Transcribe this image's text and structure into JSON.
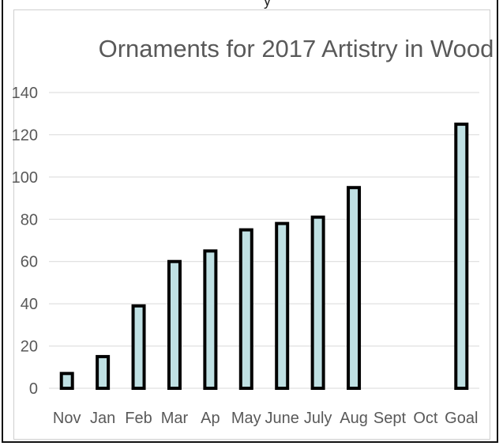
{
  "top_fragment_text": "y",
  "chart_data": {
    "type": "bar",
    "title": "Ornaments for 2017 Artistry in Wood",
    "xlabel": "",
    "ylabel": "",
    "categories": [
      "Nov",
      "Jan",
      "Feb",
      "Mar",
      "Ap",
      "May",
      "June",
      "July",
      "Aug",
      "Sept",
      "Oct",
      "Goal"
    ],
    "values": [
      7,
      15,
      39,
      60,
      65,
      75,
      78,
      81,
      95,
      null,
      null,
      125
    ],
    "ylim": [
      0,
      140
    ],
    "yticks": [
      0,
      20,
      40,
      60,
      80,
      100,
      120,
      140
    ],
    "grid": true,
    "legend": "none",
    "colors": {
      "bar_fill": "#bfe0e3",
      "bar_stroke": "#000000",
      "grid": "#d9d9d9",
      "text": "#595959"
    }
  }
}
